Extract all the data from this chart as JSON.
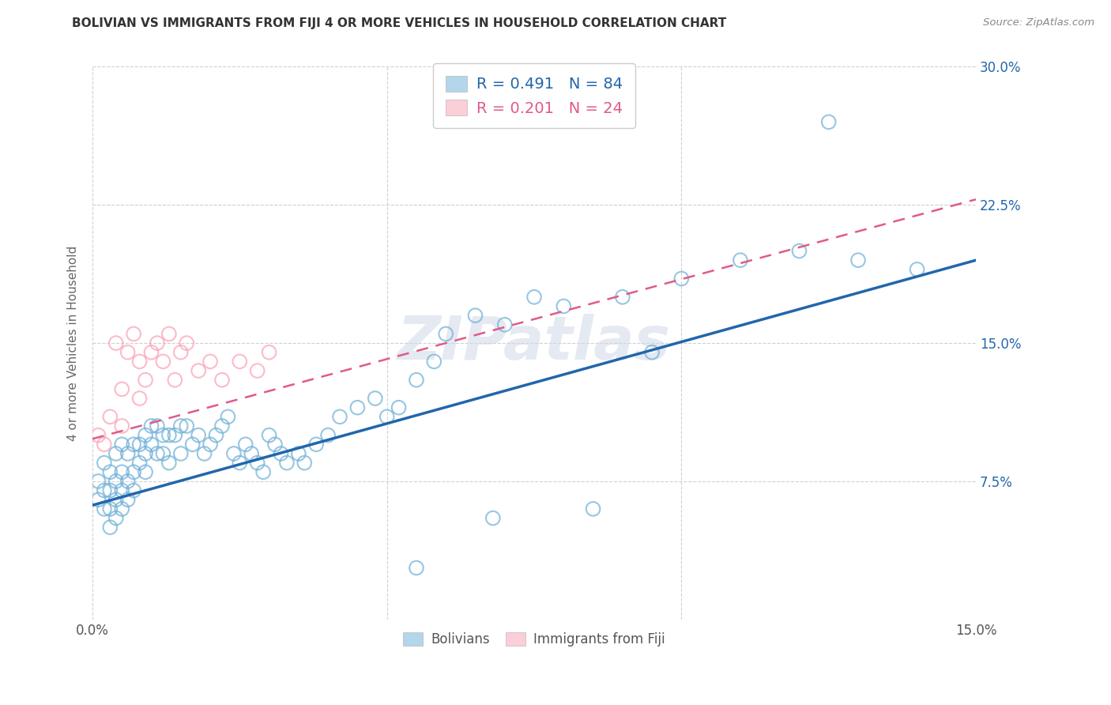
{
  "title": "BOLIVIAN VS IMMIGRANTS FROM FIJI 4 OR MORE VEHICLES IN HOUSEHOLD CORRELATION CHART",
  "source": "Source: ZipAtlas.com",
  "ylabel": "4 or more Vehicles in Household",
  "xlim": [
    0.0,
    0.15
  ],
  "ylim": [
    0.0,
    0.3
  ],
  "xticks": [
    0.0,
    0.05,
    0.1,
    0.15
  ],
  "yticks": [
    0.0,
    0.075,
    0.15,
    0.225,
    0.3
  ],
  "xtick_labels": [
    "0.0%",
    "",
    "",
    "15.0%"
  ],
  "ytick_labels": [
    "",
    "7.5%",
    "15.0%",
    "22.5%",
    "30.0%"
  ],
  "legend_entries": [
    {
      "label": "R = 0.491   N = 84",
      "color": "#6baed6"
    },
    {
      "label": "R = 0.201   N = 24",
      "color": "#fb6eb2"
    }
  ],
  "legend_bottom": [
    "Bolivians",
    "Immigrants from Fiji"
  ],
  "watermark": "ZIPatlas",
  "blue_color": "#6baed6",
  "pink_color": "#fb9eb2",
  "blue_line_color": "#2166ac",
  "pink_line_color": "#e05a8a",
  "grid_color": "#d0d0d0",
  "background_color": "#ffffff",
  "blue_trend_x": [
    0.0,
    0.15
  ],
  "blue_trend_y": [
    0.062,
    0.195
  ],
  "pink_trend_x": [
    0.0,
    0.15
  ],
  "pink_trend_y": [
    0.098,
    0.228
  ],
  "bolivians_x": [
    0.001,
    0.001,
    0.002,
    0.002,
    0.002,
    0.003,
    0.003,
    0.003,
    0.003,
    0.004,
    0.004,
    0.004,
    0.004,
    0.005,
    0.005,
    0.005,
    0.005,
    0.006,
    0.006,
    0.006,
    0.007,
    0.007,
    0.007,
    0.008,
    0.008,
    0.009,
    0.009,
    0.009,
    0.01,
    0.01,
    0.011,
    0.011,
    0.012,
    0.012,
    0.013,
    0.013,
    0.014,
    0.015,
    0.015,
    0.016,
    0.017,
    0.018,
    0.019,
    0.02,
    0.021,
    0.022,
    0.023,
    0.024,
    0.025,
    0.026,
    0.027,
    0.028,
    0.029,
    0.03,
    0.031,
    0.032,
    0.033,
    0.035,
    0.036,
    0.038,
    0.04,
    0.042,
    0.045,
    0.048,
    0.05,
    0.052,
    0.055,
    0.058,
    0.06,
    0.065,
    0.07,
    0.075,
    0.08,
    0.09,
    0.095,
    0.1,
    0.11,
    0.12,
    0.13,
    0.14,
    0.055,
    0.068,
    0.085,
    0.125
  ],
  "bolivians_y": [
    0.075,
    0.065,
    0.085,
    0.07,
    0.06,
    0.08,
    0.07,
    0.06,
    0.05,
    0.09,
    0.075,
    0.065,
    0.055,
    0.095,
    0.08,
    0.07,
    0.06,
    0.09,
    0.075,
    0.065,
    0.095,
    0.08,
    0.07,
    0.095,
    0.085,
    0.1,
    0.09,
    0.08,
    0.105,
    0.095,
    0.105,
    0.09,
    0.1,
    0.09,
    0.1,
    0.085,
    0.1,
    0.105,
    0.09,
    0.105,
    0.095,
    0.1,
    0.09,
    0.095,
    0.1,
    0.105,
    0.11,
    0.09,
    0.085,
    0.095,
    0.09,
    0.085,
    0.08,
    0.1,
    0.095,
    0.09,
    0.085,
    0.09,
    0.085,
    0.095,
    0.1,
    0.11,
    0.115,
    0.12,
    0.11,
    0.115,
    0.13,
    0.14,
    0.155,
    0.165,
    0.16,
    0.175,
    0.17,
    0.175,
    0.145,
    0.185,
    0.195,
    0.2,
    0.195,
    0.19,
    0.028,
    0.055,
    0.06,
    0.27
  ],
  "fiji_x": [
    0.001,
    0.002,
    0.003,
    0.004,
    0.005,
    0.005,
    0.006,
    0.007,
    0.008,
    0.008,
    0.009,
    0.01,
    0.011,
    0.012,
    0.013,
    0.014,
    0.015,
    0.016,
    0.018,
    0.02,
    0.022,
    0.025,
    0.028,
    0.03
  ],
  "fiji_y": [
    0.1,
    0.095,
    0.11,
    0.15,
    0.125,
    0.105,
    0.145,
    0.155,
    0.14,
    0.12,
    0.13,
    0.145,
    0.15,
    0.14,
    0.155,
    0.13,
    0.145,
    0.15,
    0.135,
    0.14,
    0.13,
    0.14,
    0.135,
    0.145
  ]
}
